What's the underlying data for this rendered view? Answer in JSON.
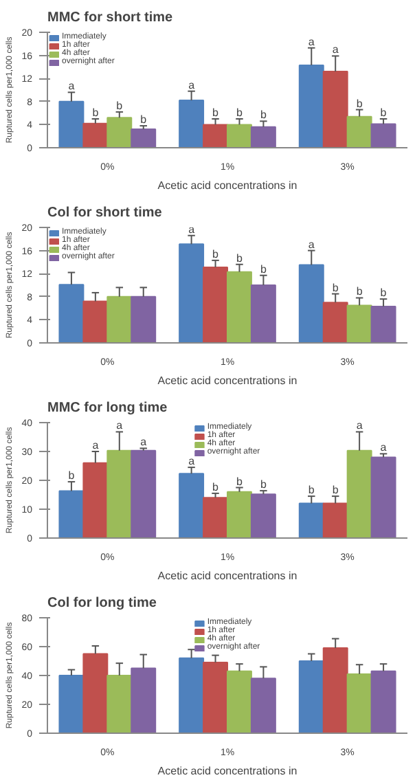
{
  "chart_data": [
    {
      "type": "bar",
      "title": "MMC for short time",
      "xlabel": "Acetic acid concentrations in",
      "ylabel": "Ruptured cells per1,000 cells",
      "categories": [
        "0%",
        "1%",
        "3%"
      ],
      "ylim": [
        0,
        20
      ],
      "yticks": [
        0,
        4,
        8,
        12,
        16,
        20
      ],
      "legend": "top left",
      "grid": false,
      "series": [
        {
          "name": "Immediately",
          "color": "#4f81bd",
          "values": [
            8.0,
            8.2,
            14.3
          ],
          "errors": [
            1.6,
            1.6,
            3.0
          ],
          "value_labels": [
            "a",
            "a",
            "a"
          ]
        },
        {
          "name": "1h after",
          "color": "#c0504d",
          "values": [
            4.2,
            4.0,
            13.2
          ],
          "errors": [
            0.8,
            1.0,
            2.7
          ],
          "value_labels": [
            "b",
            "b",
            "a"
          ]
        },
        {
          "name": "4h after",
          "color": "#9bbb59",
          "values": [
            5.2,
            4.0,
            5.4
          ],
          "errors": [
            1.0,
            1.0,
            1.2
          ],
          "value_labels": [
            "b",
            "b",
            "b"
          ]
        },
        {
          "name": "overnight after",
          "color": "#8064a2",
          "values": [
            3.2,
            3.6,
            4.1
          ],
          "errors": [
            0.6,
            1.0,
            0.9
          ],
          "value_labels": [
            "b",
            "b",
            "b"
          ]
        }
      ]
    },
    {
      "type": "bar",
      "title": "Col for short time",
      "xlabel": "Acetic acid concentrations in",
      "ylabel": "Ruptured cells per1,000 cells",
      "categories": [
        "0%",
        "1%",
        "3%"
      ],
      "ylim": [
        0,
        20
      ],
      "yticks": [
        0,
        4,
        8,
        12,
        16,
        20
      ],
      "legend": "top left",
      "grid": false,
      "series": [
        {
          "name": "Immediately",
          "color": "#4f81bd",
          "values": [
            10.1,
            17.1,
            13.5
          ],
          "errors": [
            2.1,
            1.5,
            2.5
          ],
          "value_labels": [
            null,
            "a",
            "a"
          ]
        },
        {
          "name": "1h after",
          "color": "#c0504d",
          "values": [
            7.2,
            13.1,
            7.0
          ],
          "errors": [
            1.5,
            1.2,
            1.5
          ],
          "value_labels": [
            null,
            "b",
            "b"
          ]
        },
        {
          "name": "4h after",
          "color": "#9bbb59",
          "values": [
            8.0,
            12.3,
            6.5
          ],
          "errors": [
            1.6,
            1.3,
            1.3
          ],
          "value_labels": [
            null,
            "b",
            "b"
          ]
        },
        {
          "name": "overnight after",
          "color": "#8064a2",
          "values": [
            8.0,
            10.0,
            6.3
          ],
          "errors": [
            1.6,
            1.7,
            1.3
          ],
          "value_labels": [
            null,
            "b",
            "b"
          ]
        }
      ]
    },
    {
      "type": "bar",
      "title": "MMC for long time",
      "xlabel": "Acetic acid concentrations in",
      "ylabel": "Ruptured cells per1,000 cells",
      "categories": [
        "0%",
        "1%",
        "3%"
      ],
      "ylim": [
        0,
        40
      ],
      "yticks": [
        0,
        10,
        20,
        30,
        40
      ],
      "legend": "top",
      "grid": false,
      "series": [
        {
          "name": "Immediately",
          "color": "#4f81bd",
          "values": [
            16.3,
            22.3,
            12.0
          ],
          "errors": [
            3.2,
            2.2,
            2.5
          ],
          "value_labels": [
            "b",
            "a",
            "b"
          ]
        },
        {
          "name": "1h after",
          "color": "#c0504d",
          "values": [
            26.0,
            14.0,
            12.0
          ],
          "errors": [
            4.0,
            1.5,
            2.5
          ],
          "value_labels": [
            "a",
            "b",
            "b"
          ]
        },
        {
          "name": "4h after",
          "color": "#9bbb59",
          "values": [
            30.3,
            16.0,
            30.3
          ],
          "errors": [
            6.5,
            1.5,
            6.5
          ],
          "value_labels": [
            "a",
            "b",
            "a"
          ]
        },
        {
          "name": "overnight after",
          "color": "#8064a2",
          "values": [
            30.3,
            15.2,
            28.0
          ],
          "errors": [
            0.8,
            1.2,
            1.2
          ],
          "value_labels": [
            "a",
            "b",
            "a"
          ]
        }
      ]
    },
    {
      "type": "bar",
      "title": "Col for long time",
      "xlabel": "Acetic acid concentrations in",
      "ylabel": "Ruptured cells per1,000 cells",
      "categories": [
        "0%",
        "1%",
        "3%"
      ],
      "ylim": [
        0,
        80
      ],
      "yticks": [
        0,
        20,
        40,
        60,
        80
      ],
      "legend": "top",
      "grid": false,
      "series": [
        {
          "name": "Immediately",
          "color": "#4f81bd",
          "values": [
            40,
            52,
            50
          ],
          "errors": [
            4.0,
            6.0,
            5.0
          ]
        },
        {
          "name": "1h after",
          "color": "#c0504d",
          "values": [
            55,
            49,
            59
          ],
          "errors": [
            5.5,
            5.0,
            6.5
          ]
        },
        {
          "name": "4h after",
          "color": "#9bbb59",
          "values": [
            40.0,
            43.0,
            41.0
          ],
          "errors": [
            8.5,
            5.0,
            6.5
          ]
        },
        {
          "name": "overnight after",
          "color": "#8064a2",
          "values": [
            45,
            38,
            43
          ],
          "errors": [
            9.5,
            8.0,
            5.0
          ]
        }
      ]
    }
  ]
}
